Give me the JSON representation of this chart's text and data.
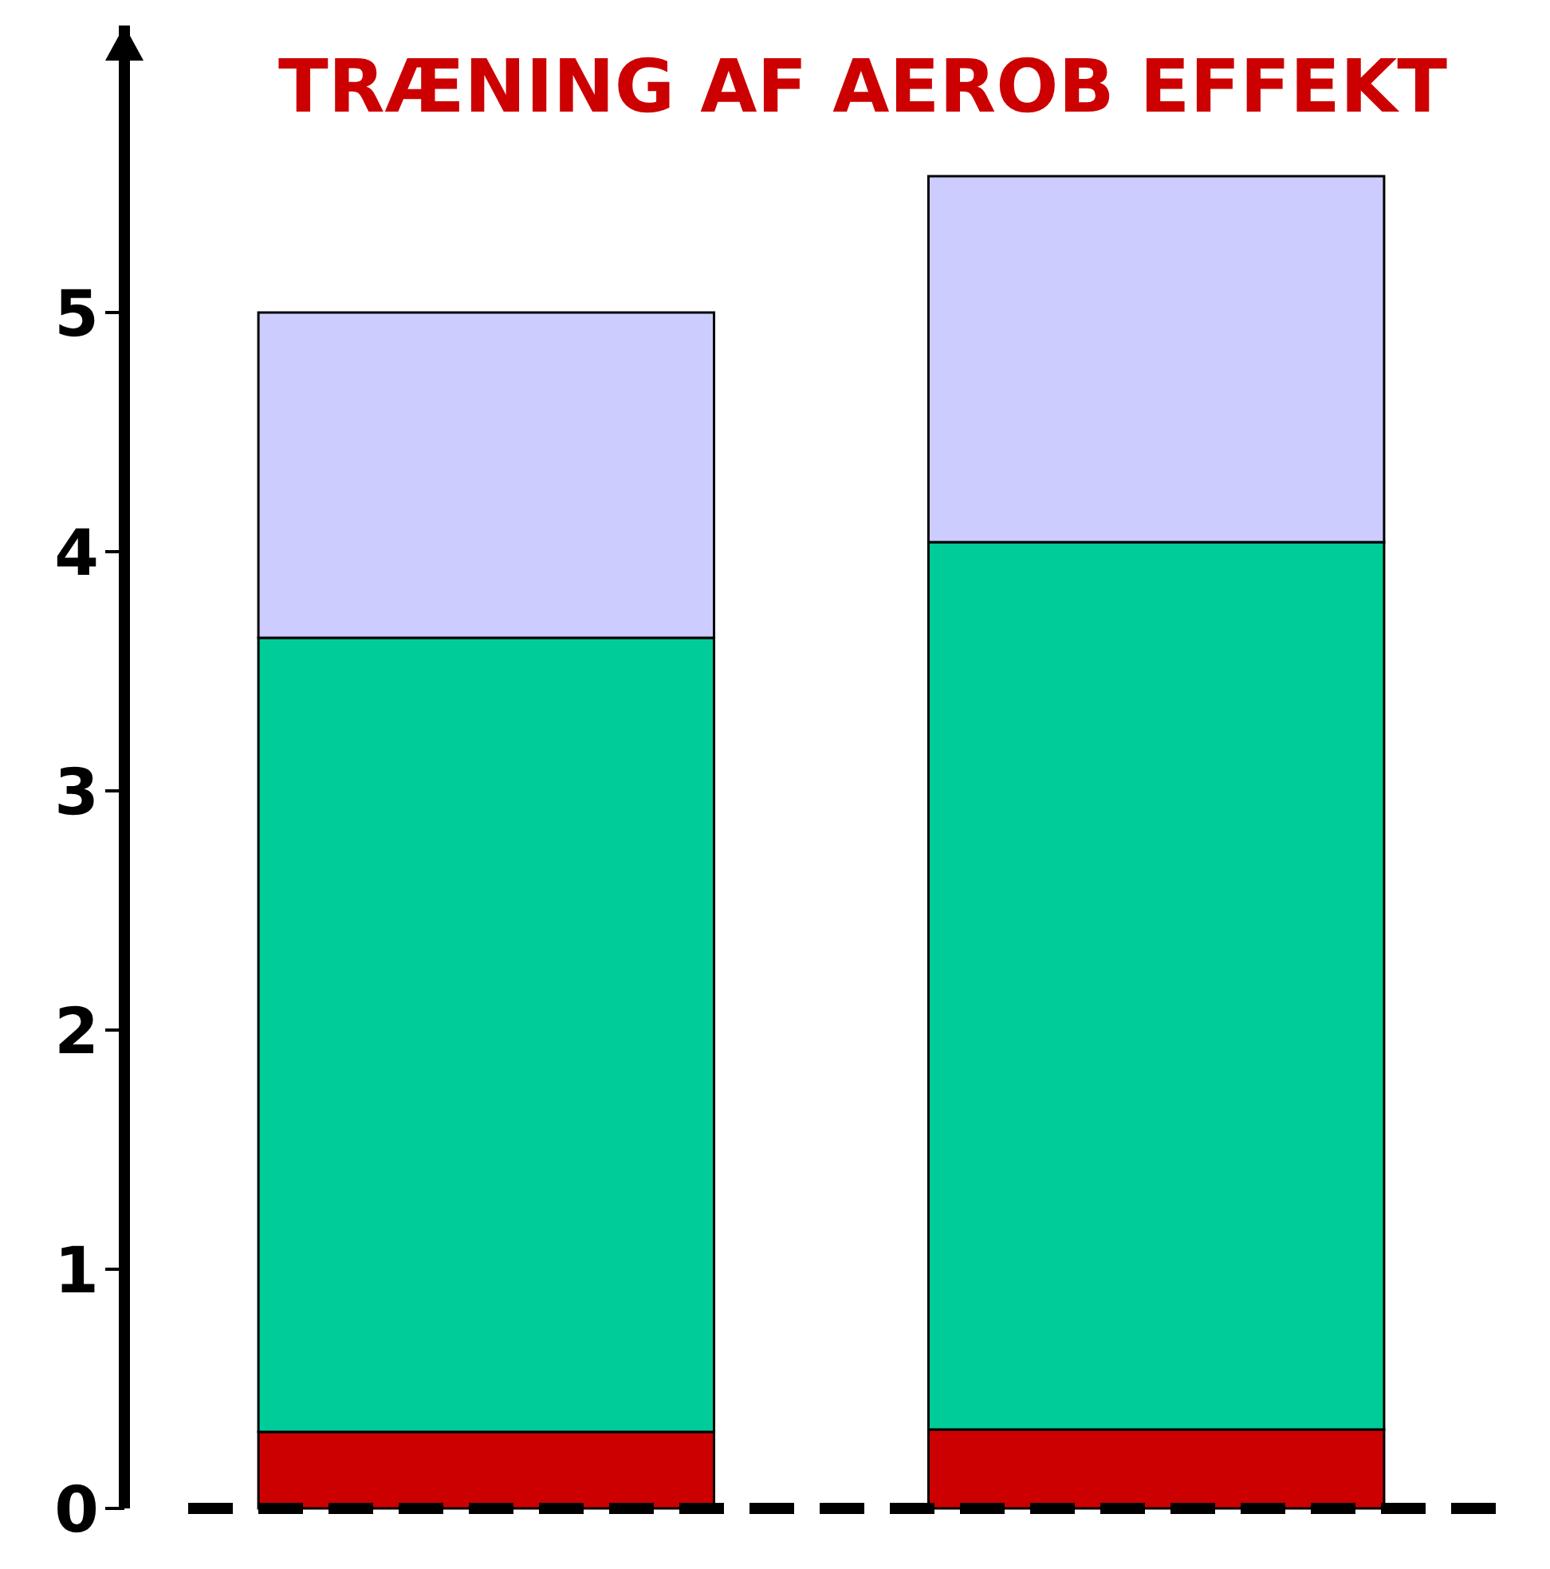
{
  "chart_data": {
    "type": "bar",
    "title": "TRÆNING AF AEROB EFFEKT",
    "categories": [
      null,
      null
    ],
    "stacked": true,
    "series": [
      {
        "color": "#cc0000",
        "values": [
          0.32,
          0.33
        ]
      },
      {
        "color": "#00cc99",
        "values": [
          3.32,
          3.71
        ]
      },
      {
        "color": "#ccccff",
        "values": [
          1.36,
          1.53
        ]
      }
    ],
    "ylim": [
      0,
      6.2
    ],
    "yticks": [
      0,
      1,
      2,
      3,
      4,
      5
    ]
  }
}
